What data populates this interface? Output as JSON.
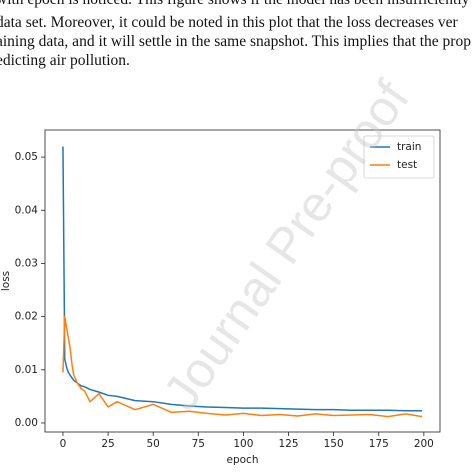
{
  "text": {
    "lines": [
      "with epoch is noticed. This figure shows if the model has been insufficiently",
      "data set. Moreover, it could be noted in this plot that the loss decreases ver",
      "aining data, and it will settle in the same snapshot. This implies that the prop",
      "edicting air pollution."
    ]
  },
  "watermark": "Journal Pre-proof",
  "chart_data": {
    "type": "line",
    "xlabel": "epoch",
    "ylabel": "loss",
    "x": [
      0,
      1,
      2,
      3,
      4,
      5,
      6,
      8,
      10,
      12,
      15,
      20,
      25,
      30,
      40,
      50,
      60,
      70,
      80,
      90,
      100,
      110,
      120,
      130,
      140,
      150,
      160,
      170,
      180,
      190,
      199
    ],
    "series": [
      {
        "name": "train",
        "color": "#1f77b4",
        "values": [
          0.052,
          0.012,
          0.0105,
          0.0095,
          0.009,
          0.0085,
          0.008,
          0.0075,
          0.007,
          0.0068,
          0.0063,
          0.0058,
          0.0052,
          0.005,
          0.0042,
          0.004,
          0.0035,
          0.0032,
          0.003,
          0.0029,
          0.0028,
          0.0028,
          0.0027,
          0.0026,
          0.0025,
          0.0025,
          0.0024,
          0.0024,
          0.0024,
          0.0023,
          0.0023
        ]
      },
      {
        "name": "test",
        "color": "#ff7f0e",
        "values": [
          0.0095,
          0.02,
          0.018,
          0.016,
          0.014,
          0.011,
          0.009,
          0.0075,
          0.0065,
          0.006,
          0.004,
          0.0055,
          0.003,
          0.004,
          0.0025,
          0.0035,
          0.002,
          0.0022,
          0.0018,
          0.0015,
          0.0018,
          0.0014,
          0.0016,
          0.0013,
          0.0017,
          0.0014,
          0.0015,
          0.0016,
          0.0012,
          0.0017,
          0.0012
        ]
      }
    ],
    "xlim": [
      -9.95,
      208.95
    ],
    "xticks": [
      0,
      25,
      50,
      75,
      100,
      125,
      150,
      175,
      200
    ],
    "ylim": [
      -0.0017,
      0.0551
    ],
    "yticks": [
      {
        "value": 0,
        "label": "0.00"
      },
      {
        "value": 0.01,
        "label": "0.01"
      },
      {
        "value": 0.02,
        "label": "0.02"
      },
      {
        "value": 0.03,
        "label": "0.03"
      },
      {
        "value": 0.04,
        "label": "0.04"
      },
      {
        "value": 0.05,
        "label": "0.05"
      }
    ],
    "legend": "upper right"
  }
}
